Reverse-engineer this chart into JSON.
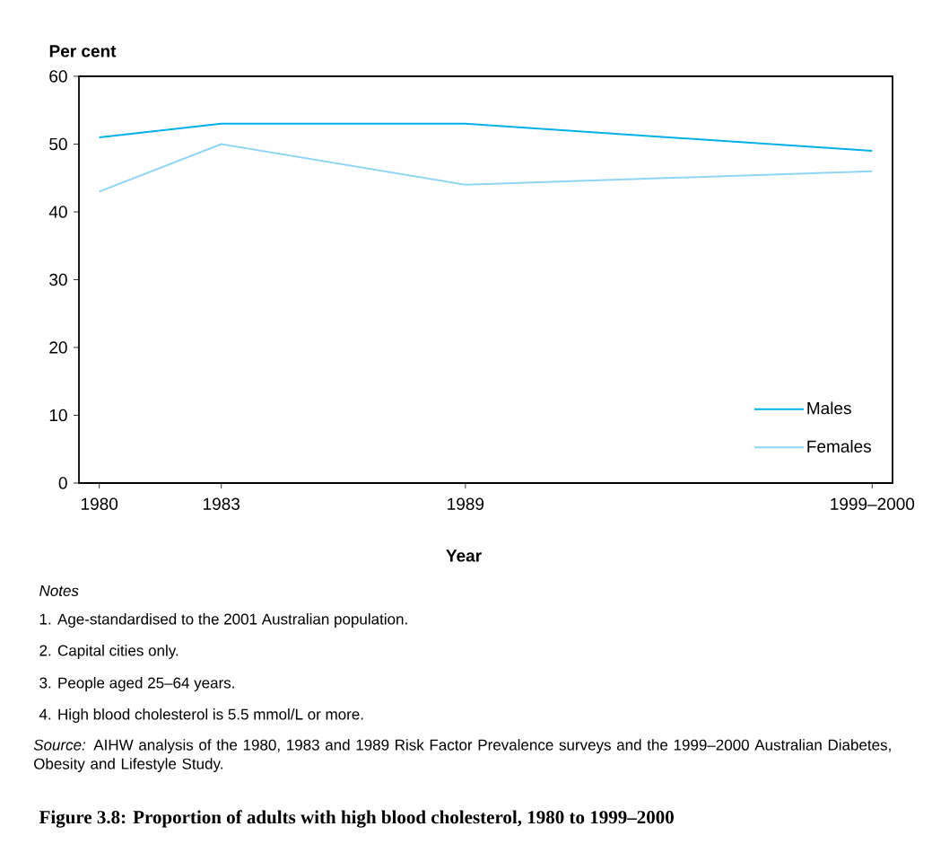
{
  "chart_data": {
    "type": "line",
    "title": "Figure 3.8: Proportion of adults with high blood cholesterol, 1980 to 1999–2000",
    "xlabel": "Year",
    "ylabel": "Per cent",
    "x": [
      1980,
      1983,
      1989,
      1999
    ],
    "xlim": [
      1979.5,
      1999.5
    ],
    "xticks": [
      1980,
      1983,
      1989,
      {
        "value": 1999,
        "label": "1999–2000"
      }
    ],
    "ylim": [
      0,
      60
    ],
    "yticks": [
      0,
      10,
      20,
      30,
      40,
      50,
      60
    ],
    "series": [
      {
        "name": "Males",
        "color": "#00b0e8",
        "values": [
          51,
          53,
          53,
          49
        ]
      },
      {
        "name": "Females",
        "color": "#8fd6f5",
        "values": [
          43,
          50,
          44,
          46
        ]
      }
    ],
    "legend": "bottom right",
    "line_style": "solid",
    "annotations": [
      "Notes",
      "1.  Age-standardised to the 2001 Australian population.",
      "2.  Capital cities only.",
      "3.  People aged 25–64 years.",
      "4.  High blood cholesterol is 5.5 mmol/L or more.",
      "*Source:* AIHW analysis of the 1980, 1983 and 1989 Risk Factor Prevalence surveys and the 1999–2000 Australian Diabetes, Obesity and Lifestyle Study."
    ]
  }
}
